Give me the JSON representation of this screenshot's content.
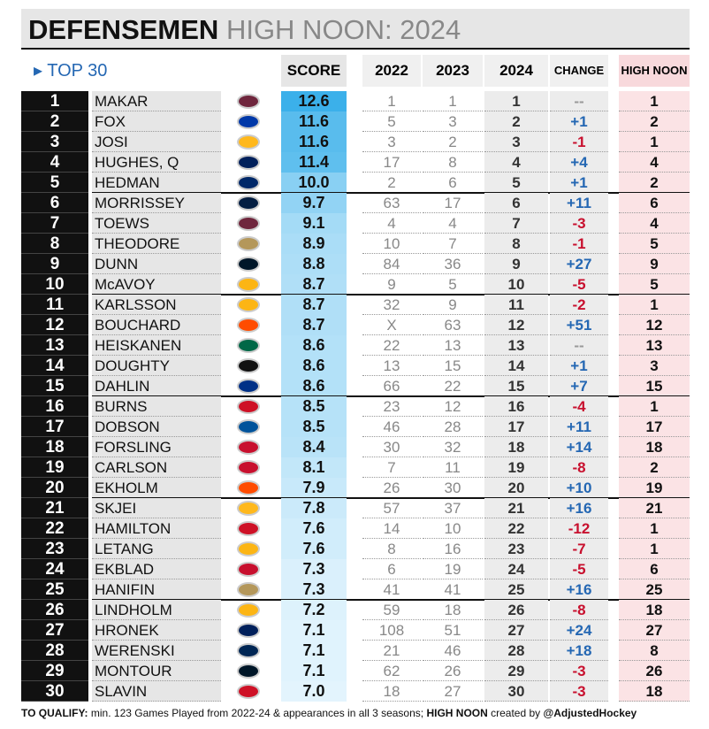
{
  "title": {
    "main": "DEFENSEMEN",
    "sub": "HIGH NOON: 2024"
  },
  "header": {
    "top": "TOP 30",
    "score": "SCORE",
    "y2022": "2022",
    "y2023": "2023",
    "y2024": "2024",
    "change": "CHANGE",
    "high_noon": "HIGH NOON"
  },
  "table": {
    "rows": [
      [
        "1",
        "MAKAR",
        "12.6",
        "1",
        "1",
        "1",
        "--",
        "1"
      ],
      [
        "2",
        "FOX",
        "11.6",
        "5",
        "3",
        "2",
        "+1",
        "2"
      ],
      [
        "3",
        "JOSI",
        "11.6",
        "3",
        "2",
        "3",
        "-1",
        "1"
      ],
      [
        "4",
        "HUGHES, Q",
        "11.4",
        "17",
        "8",
        "4",
        "+4",
        "4"
      ],
      [
        "5",
        "HEDMAN",
        "10.0",
        "2",
        "6",
        "5",
        "+1",
        "2"
      ],
      [
        "6",
        "MORRISSEY",
        "9.7",
        "63",
        "17",
        "6",
        "+11",
        "6"
      ],
      [
        "7",
        "TOEWS",
        "9.1",
        "4",
        "4",
        "7",
        "-3",
        "4"
      ],
      [
        "8",
        "THEODORE",
        "8.9",
        "10",
        "7",
        "8",
        "-1",
        "5"
      ],
      [
        "9",
        "DUNN",
        "8.8",
        "84",
        "36",
        "9",
        "+27",
        "9"
      ],
      [
        "10",
        "McAVOY",
        "8.7",
        "9",
        "5",
        "10",
        "-5",
        "5"
      ],
      [
        "11",
        "KARLSSON",
        "8.7",
        "32",
        "9",
        "11",
        "-2",
        "1"
      ],
      [
        "12",
        "BOUCHARD",
        "8.7",
        "X",
        "63",
        "12",
        "+51",
        "12"
      ],
      [
        "13",
        "HEISKANEN",
        "8.6",
        "22",
        "13",
        "13",
        "--",
        "13"
      ],
      [
        "14",
        "DOUGHTY",
        "8.6",
        "13",
        "15",
        "14",
        "+1",
        "3"
      ],
      [
        "15",
        "DAHLIN",
        "8.6",
        "66",
        "22",
        "15",
        "+7",
        "15"
      ],
      [
        "16",
        "BURNS",
        "8.5",
        "23",
        "12",
        "16",
        "-4",
        "1"
      ],
      [
        "17",
        "DOBSON",
        "8.5",
        "46",
        "28",
        "17",
        "+11",
        "17"
      ],
      [
        "18",
        "FORSLING",
        "8.4",
        "30",
        "32",
        "18",
        "+14",
        "18"
      ],
      [
        "19",
        "CARLSON",
        "8.1",
        "7",
        "11",
        "19",
        "-8",
        "2"
      ],
      [
        "20",
        "EKHOLM",
        "7.9",
        "26",
        "30",
        "20",
        "+10",
        "19"
      ],
      [
        "21",
        "SKJEI",
        "7.8",
        "57",
        "37",
        "21",
        "+16",
        "21"
      ],
      [
        "22",
        "HAMILTON",
        "7.6",
        "14",
        "10",
        "22",
        "-12",
        "1"
      ],
      [
        "23",
        "LETANG",
        "7.6",
        "8",
        "16",
        "23",
        "-7",
        "1"
      ],
      [
        "24",
        "EKBLAD",
        "7.3",
        "6",
        "19",
        "24",
        "-5",
        "6"
      ],
      [
        "25",
        "HANIFIN",
        "7.3",
        "41",
        "41",
        "25",
        "+16",
        "25"
      ],
      [
        "26",
        "LINDHOLM",
        "7.2",
        "59",
        "18",
        "26",
        "-8",
        "18"
      ],
      [
        "27",
        "HRONEK",
        "7.1",
        "108",
        "51",
        "27",
        "+24",
        "27"
      ],
      [
        "28",
        "WERENSKI",
        "7.1",
        "21",
        "46",
        "28",
        "+18",
        "8"
      ],
      [
        "29",
        "MONTOUR",
        "7.1",
        "62",
        "26",
        "29",
        "-3",
        "26"
      ],
      [
        "30",
        "SLAVIN",
        "7.0",
        "18",
        "27",
        "30",
        "-3",
        "18"
      ]
    ]
  },
  "footer": {
    "label": "TO QUALIFY:",
    "text": " min. 123 Games Played from 2022-24 & appearances in all 3 seasons; ",
    "bold": "HIGH NOON",
    "text2": " created by ",
    "credit": "@AdjustedHockey"
  }
}
